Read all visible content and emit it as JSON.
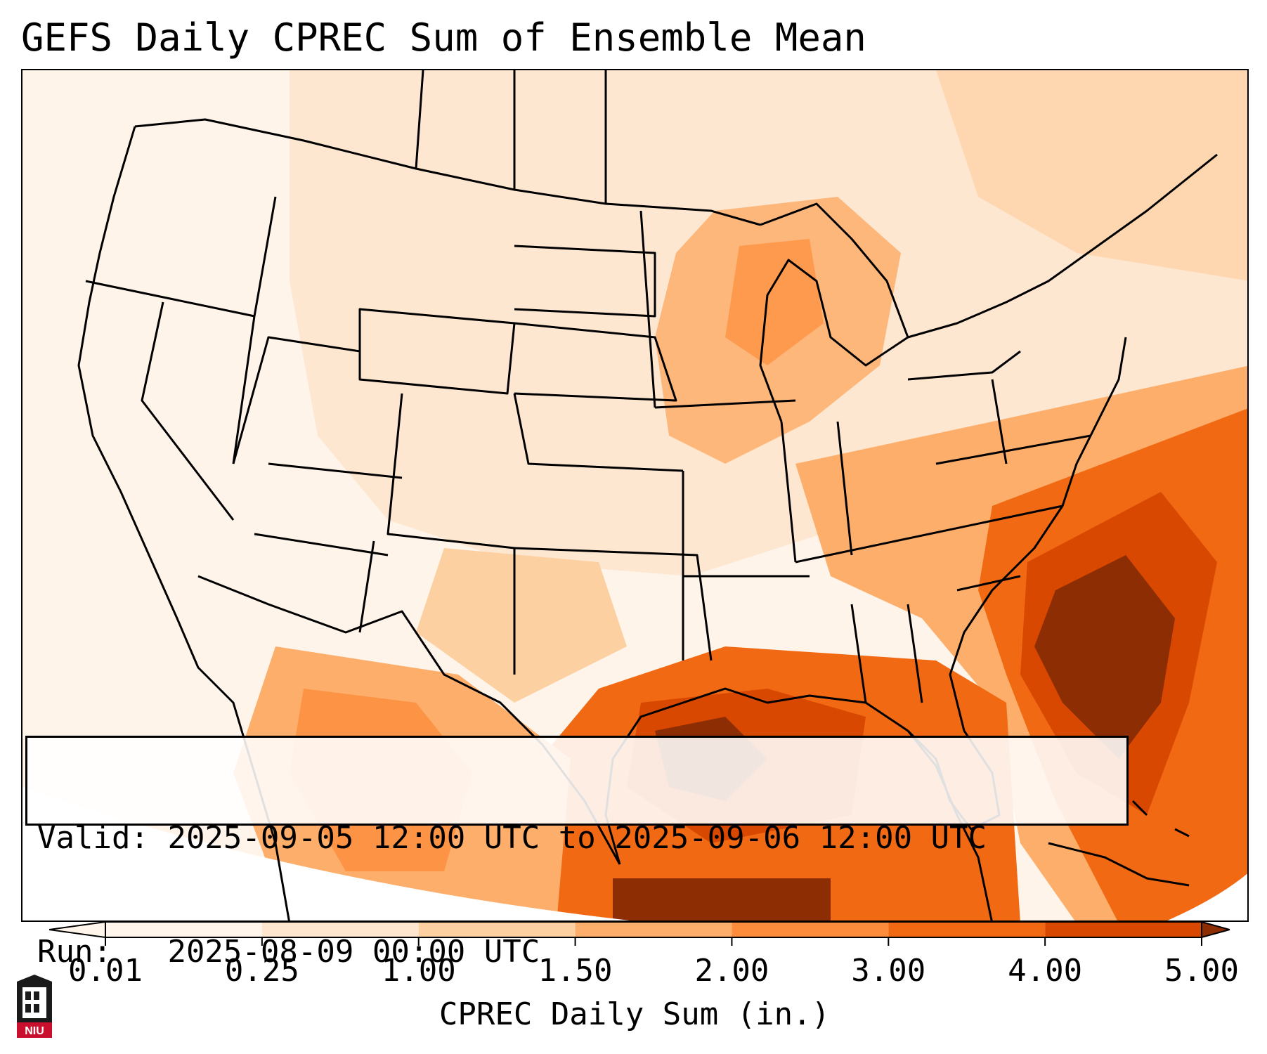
{
  "title": "GEFS Daily CPREC Sum of Ensemble Mean",
  "info": {
    "valid_label": "Valid:",
    "valid_value": "2025-09-05 12:00 UTC to 2025-09-06 12:00 UTC",
    "run_label": "Run:",
    "run_value": "2025-08-09 00:00 UTC"
  },
  "colorbar": {
    "label": "CPREC Daily Sum (in.)",
    "ticks": [
      "0.01",
      "0.25",
      "1.00",
      "1.50",
      "2.00",
      "3.00",
      "4.00",
      "5.00"
    ],
    "colors": [
      "#fff5eb",
      "#fee6ce",
      "#fdd0a2",
      "#fdae6b",
      "#fd8d3c",
      "#f16913",
      "#d94801",
      "#8c2d04"
    ]
  },
  "logo": {
    "name": "NIU",
    "text": "NIU",
    "color": "#c8102e"
  }
}
